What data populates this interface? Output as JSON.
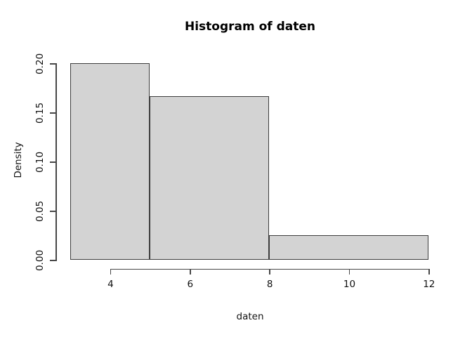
{
  "chart_data": {
    "type": "bar",
    "subtype": "histogram",
    "title": "Histogram of daten",
    "xlabel": "daten",
    "ylabel": "Density",
    "xlim": [
      3,
      12
    ],
    "ylim": [
      0,
      0.2
    ],
    "grid": false,
    "legend": null,
    "bins": [
      {
        "x0": 3,
        "x1": 5,
        "density": 0.2
      },
      {
        "x0": 5,
        "x1": 8,
        "density": 0.166667
      },
      {
        "x0": 8,
        "x1": 12,
        "density": 0.025
      }
    ],
    "x_ticks": [
      {
        "value": 4,
        "label": "4"
      },
      {
        "value": 6,
        "label": "6"
      },
      {
        "value": 8,
        "label": "8"
      },
      {
        "value": 10,
        "label": "10"
      },
      {
        "value": 12,
        "label": "12"
      }
    ],
    "y_ticks": [
      {
        "value": 0.0,
        "label": "0.00"
      },
      {
        "value": 0.05,
        "label": "0.05"
      },
      {
        "value": 0.1,
        "label": "0.10"
      },
      {
        "value": 0.15,
        "label": "0.15"
      },
      {
        "value": 0.2,
        "label": "0.20"
      }
    ],
    "colors": {
      "bar_fill": "#d3d3d3",
      "bar_border": "#3d3d3d",
      "axis": "#474747",
      "text": "#111111",
      "title": "#000000",
      "background": "#ffffff"
    }
  }
}
